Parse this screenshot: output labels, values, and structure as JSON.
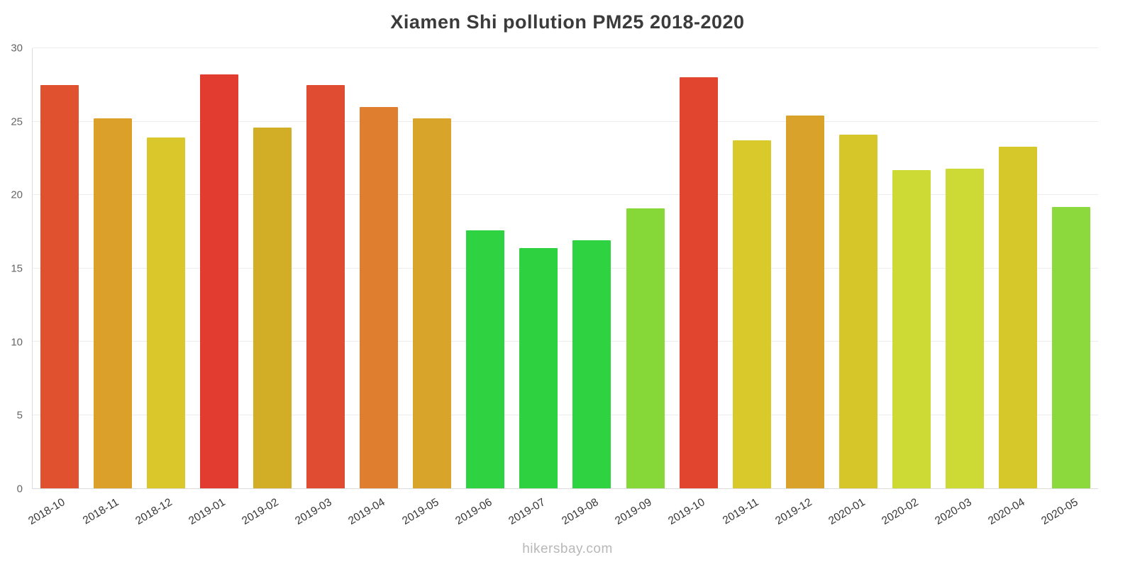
{
  "page": {
    "watermark": "hikersbay.com"
  },
  "chart_data": {
    "type": "bar",
    "title": "Xiamen Shi pollution PM25 2018-2020",
    "categories": [
      "2018-10",
      "2018-11",
      "2018-12",
      "2019-01",
      "2019-02",
      "2019-03",
      "2019-04",
      "2019-05",
      "2019-06",
      "2019-07",
      "2019-08",
      "2019-09",
      "2019-10",
      "2019-11",
      "2019-12",
      "2020-01",
      "2020-02",
      "2020-03",
      "2020-04",
      "2020-05"
    ],
    "values": [
      27.5,
      25.2,
      23.9,
      28.2,
      24.6,
      27.5,
      26.0,
      25.2,
      17.6,
      16.4,
      16.9,
      19.1,
      28.0,
      23.7,
      25.4,
      24.1,
      21.7,
      21.8,
      23.3,
      19.2
    ],
    "bar_colors": [
      "#e0512f",
      "#dba02a",
      "#d9c72b",
      "#e23b30",
      "#d2ae27",
      "#e04c31",
      "#e07e30",
      "#d9a42a",
      "#2fd341",
      "#2ed13f",
      "#2fd341",
      "#85d837",
      "#e2452f",
      "#d9c92b",
      "#d8a22b",
      "#d7c62a",
      "#cdda35",
      "#cdda35",
      "#d6c82b",
      "#8bd93c"
    ],
    "xlabel": "",
    "ylabel": "",
    "ylim": [
      0,
      30
    ],
    "yticks": [
      0,
      5,
      10,
      15,
      20,
      25,
      30
    ],
    "grid": true,
    "legend": false
  },
  "colors": {
    "title": "#3b3b3b",
    "axis_tick": "#666666",
    "x_label": "#383838",
    "gridline": "#ececec",
    "axis_line": "#dcdcdc",
    "watermark": "#b8b8b8",
    "background": "#ffffff"
  }
}
